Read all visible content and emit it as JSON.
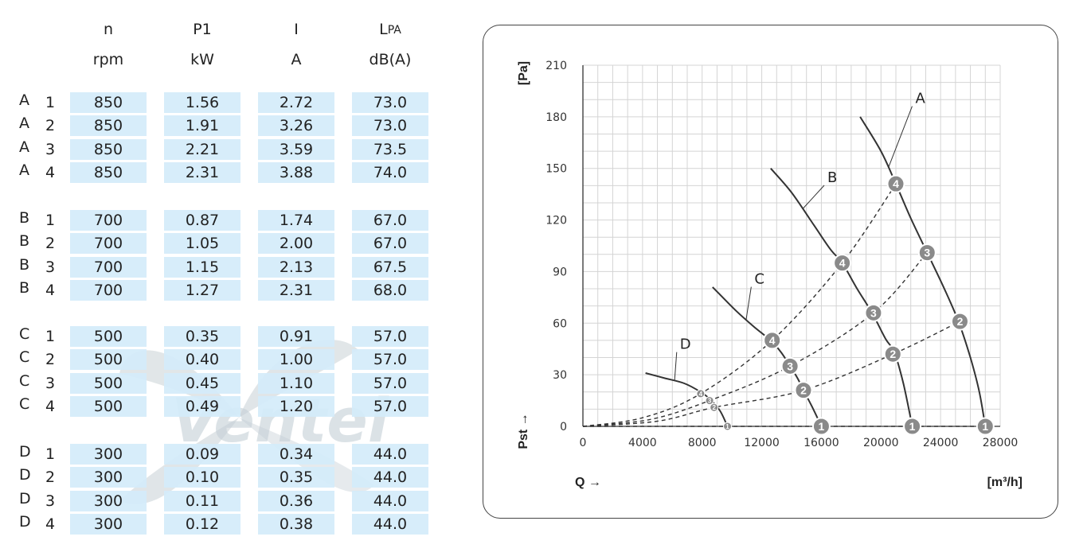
{
  "table": {
    "columns": [
      {
        "label": "n",
        "unit": "rpm"
      },
      {
        "label": "P1",
        "unit": "kW"
      },
      {
        "label": "I",
        "unit": "A"
      },
      {
        "label": "L",
        "sub": "PA",
        "unit": "dB(A)"
      }
    ],
    "groups": [
      {
        "curve": "A",
        "rows": [
          {
            "step": "1",
            "n": "850",
            "p1": "1.56",
            "i": "2.72",
            "lpa": "73.0"
          },
          {
            "step": "2",
            "n": "850",
            "p1": "1.91",
            "i": "3.26",
            "lpa": "73.0"
          },
          {
            "step": "3",
            "n": "850",
            "p1": "2.21",
            "i": "3.59",
            "lpa": "73.5"
          },
          {
            "step": "4",
            "n": "850",
            "p1": "2.31",
            "i": "3.88",
            "lpa": "74.0"
          }
        ]
      },
      {
        "curve": "B",
        "rows": [
          {
            "step": "1",
            "n": "700",
            "p1": "0.87",
            "i": "1.74",
            "lpa": "67.0"
          },
          {
            "step": "2",
            "n": "700",
            "p1": "1.05",
            "i": "2.00",
            "lpa": "67.0"
          },
          {
            "step": "3",
            "n": "700",
            "p1": "1.15",
            "i": "2.13",
            "lpa": "67.5"
          },
          {
            "step": "4",
            "n": "700",
            "p1": "1.27",
            "i": "2.31",
            "lpa": "68.0"
          }
        ]
      },
      {
        "curve": "C",
        "rows": [
          {
            "step": "1",
            "n": "500",
            "p1": "0.35",
            "i": "0.91",
            "lpa": "57.0"
          },
          {
            "step": "2",
            "n": "500",
            "p1": "0.40",
            "i": "1.00",
            "lpa": "57.0"
          },
          {
            "step": "3",
            "n": "500",
            "p1": "0.45",
            "i": "1.10",
            "lpa": "57.0"
          },
          {
            "step": "4",
            "n": "500",
            "p1": "0.49",
            "i": "1.20",
            "lpa": "57.0"
          }
        ]
      },
      {
        "curve": "D",
        "rows": [
          {
            "step": "1",
            "n": "300",
            "p1": "0.09",
            "i": "0.34",
            "lpa": "44.0"
          },
          {
            "step": "2",
            "n": "300",
            "p1": "0.10",
            "i": "0.35",
            "lpa": "44.0"
          },
          {
            "step": "3",
            "n": "300",
            "p1": "0.11",
            "i": "0.36",
            "lpa": "44.0"
          },
          {
            "step": "4",
            "n": "300",
            "p1": "0.12",
            "i": "0.38",
            "lpa": "44.0"
          }
        ]
      }
    ]
  },
  "watermark": {
    "text": "Ventel",
    "color": "#bcc8cf"
  },
  "chart_data": {
    "type": "line",
    "xlabel": "Q →",
    "xunit": "[m³/h]",
    "ylabel": "Pst →",
    "yunit": "[Pa]",
    "xlim": [
      0,
      28000
    ],
    "ylim": [
      0,
      210
    ],
    "xticks": [
      0,
      4000,
      8000,
      12000,
      16000,
      20000,
      24000,
      28000
    ],
    "yticks": [
      0,
      30,
      60,
      90,
      120,
      150,
      180,
      210
    ],
    "grid": true,
    "curves": [
      {
        "name": "A",
        "label_at": [
          22200,
          188
        ],
        "points": [
          [
            18600,
            180
          ],
          [
            20000,
            160
          ],
          [
            21000,
            141
          ],
          [
            22000,
            121
          ],
          [
            23100,
            101
          ],
          [
            24200,
            81
          ],
          [
            25200,
            61
          ],
          [
            26000,
            40
          ],
          [
            26600,
            20
          ],
          [
            27000,
            0
          ]
        ]
      },
      {
        "name": "B",
        "label_at": [
          16300,
          142
        ],
        "points": [
          [
            12600,
            150
          ],
          [
            14000,
            136
          ],
          [
            15500,
            117
          ],
          [
            16600,
            103
          ],
          [
            17400,
            95
          ],
          [
            18400,
            80
          ],
          [
            19400,
            66
          ],
          [
            20300,
            51
          ],
          [
            20900,
            43
          ],
          [
            21500,
            25
          ],
          [
            22100,
            0
          ]
        ]
      },
      {
        "name": "C",
        "label_at": [
          11400,
          83
        ],
        "points": [
          [
            8700,
            81
          ],
          [
            10300,
            67
          ],
          [
            11600,
            57
          ],
          [
            12600,
            50
          ],
          [
            13300,
            43
          ],
          [
            13900,
            35
          ],
          [
            14400,
            28
          ],
          [
            14800,
            21
          ],
          [
            15400,
            11
          ],
          [
            16000,
            0
          ]
        ]
      },
      {
        "name": "D",
        "label_at": [
          6400,
          45
        ],
        "points": [
          [
            4200,
            31
          ],
          [
            5500,
            28
          ],
          [
            6800,
            25
          ],
          [
            7900,
            20
          ],
          [
            8500,
            16
          ],
          [
            9200,
            9
          ],
          [
            9700,
            0
          ]
        ]
      }
    ],
    "system_curves": [
      {
        "name": "4",
        "points": [
          [
            0,
            0
          ],
          [
            4000,
            5
          ],
          [
            7900,
            19
          ],
          [
            12700,
            50
          ],
          [
            17400,
            95
          ],
          [
            21000,
            141
          ]
        ]
      },
      {
        "name": "3",
        "points": [
          [
            0,
            0
          ],
          [
            4500,
            4
          ],
          [
            8500,
            15
          ],
          [
            13900,
            35
          ],
          [
            19500,
            66
          ],
          [
            23100,
            101
          ]
        ]
      },
      {
        "name": "2",
        "points": [
          [
            0,
            0
          ],
          [
            5000,
            3
          ],
          [
            8800,
            11
          ],
          [
            14800,
            21
          ],
          [
            20800,
            42
          ],
          [
            25300,
            61
          ]
        ]
      },
      {
        "name": "1",
        "points": [
          [
            0,
            0
          ],
          [
            9700,
            0
          ],
          [
            16000,
            0
          ],
          [
            22100,
            0
          ],
          [
            27000,
            0
          ]
        ]
      }
    ],
    "markers": [
      {
        "curve": "A",
        "label": "4",
        "q": 21000,
        "p": 141
      },
      {
        "curve": "A",
        "label": "3",
        "q": 23100,
        "p": 101
      },
      {
        "curve": "A",
        "label": "2",
        "q": 25300,
        "p": 61
      },
      {
        "curve": "A",
        "label": "1",
        "q": 27000,
        "p": 0
      },
      {
        "curve": "B",
        "label": "4",
        "q": 17400,
        "p": 95
      },
      {
        "curve": "B",
        "label": "3",
        "q": 19500,
        "p": 66
      },
      {
        "curve": "B",
        "label": "2",
        "q": 20800,
        "p": 42
      },
      {
        "curve": "B",
        "label": "1",
        "q": 22100,
        "p": 0
      },
      {
        "curve": "C",
        "label": "4",
        "q": 12700,
        "p": 50
      },
      {
        "curve": "C",
        "label": "3",
        "q": 13900,
        "p": 35
      },
      {
        "curve": "C",
        "label": "2",
        "q": 14800,
        "p": 21
      },
      {
        "curve": "C",
        "label": "1",
        "q": 16000,
        "p": 0
      },
      {
        "curve": "D",
        "label": "4",
        "q": 7900,
        "p": 19
      },
      {
        "curve": "D",
        "label": "3",
        "q": 8500,
        "p": 15
      },
      {
        "curve": "D",
        "label": "2",
        "q": 8800,
        "p": 11
      },
      {
        "curve": "D",
        "label": "1",
        "q": 9700,
        "p": 0
      }
    ]
  }
}
